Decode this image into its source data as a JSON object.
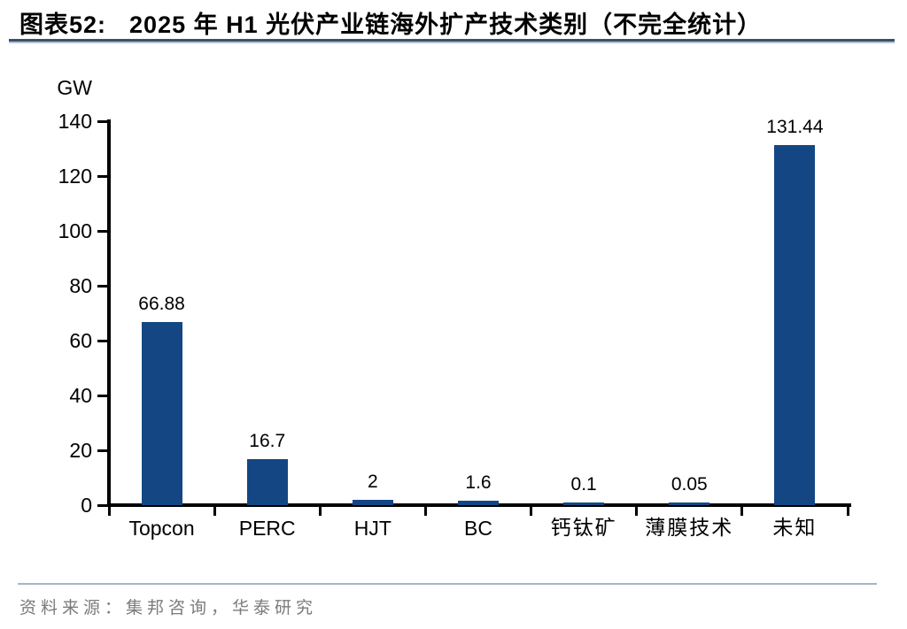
{
  "page": {
    "exhibit_label": "图表52:",
    "title": "2025 年 H1 光伏产业链海外扩产技术类别（不完全统计）",
    "source": "资料来源：集邦咨询，华泰研究"
  },
  "chart_data": {
    "type": "bar",
    "title": "2025 年 H1 光伏产业链海外扩产技术类别（不完全统计）",
    "unit_label": "GW",
    "xlabel": "",
    "ylabel": "GW",
    "categories": [
      "Topcon",
      "PERC",
      "HJT",
      "BC",
      "钙钛矿",
      "薄膜技术",
      "未知"
    ],
    "values": [
      66.88,
      16.7,
      2,
      1.6,
      0.1,
      0.05,
      131.44
    ],
    "value_labels": [
      "66.88",
      "16.7",
      "2",
      "1.6",
      "0.1",
      "0.05",
      "131.44"
    ],
    "ylim": [
      0,
      140
    ],
    "yticks": [
      0,
      20,
      40,
      60,
      80,
      100,
      120,
      140
    ],
    "grid": false,
    "legend_position": "none",
    "bar_color": "#144683"
  },
  "colors": {
    "bar": "#144683",
    "axis": "#000000",
    "title_rule_dark": "#3d5166",
    "title_rule_light": "#b3c4d9",
    "footer_rule": "#a3b5cb",
    "source_text": "#7b7b7b"
  }
}
